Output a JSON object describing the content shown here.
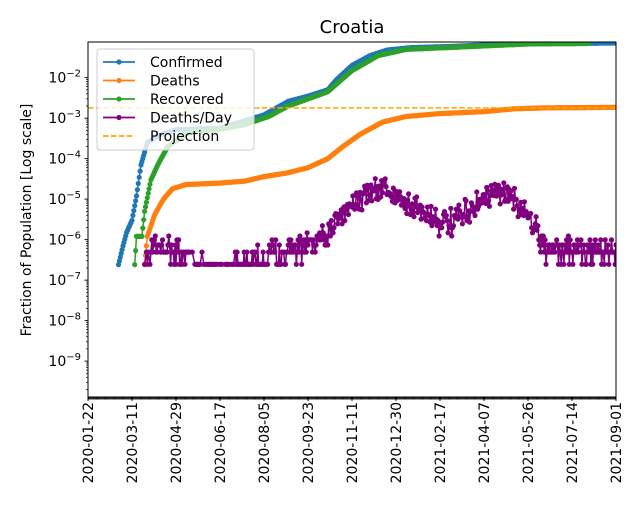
{
  "chart_data": {
    "type": "line",
    "title": "Croatia",
    "xlabel": "",
    "ylabel": "Fraction of Population [Log scale]",
    "yscale": "log",
    "ylim": [
      1.3e-10,
      0.076
    ],
    "xlim": [
      "2020-01-22",
      "2021-09-01"
    ],
    "xticks": [
      "2020-01-22",
      "2020-03-11",
      "2020-04-29",
      "2020-06-17",
      "2020-08-05",
      "2020-09-23",
      "2020-11-11",
      "2020-12-30",
      "2021-02-17",
      "2021-04-07",
      "2021-05-26",
      "2021-07-14",
      "2021-09-01"
    ],
    "yticks": [
      {
        "exp": -2,
        "label": "10",
        "sup": "−2"
      },
      {
        "exp": -3,
        "label": "10",
        "sup": "−3"
      },
      {
        "exp": -4,
        "label": "10",
        "sup": "−4"
      },
      {
        "exp": -5,
        "label": "10",
        "sup": "−5"
      },
      {
        "exp": -6,
        "label": "10",
        "sup": "−6"
      },
      {
        "exp": -7,
        "label": "10",
        "sup": "−7"
      },
      {
        "exp": -8,
        "label": "10",
        "sup": "−8"
      },
      {
        "exp": -9,
        "label": "10",
        "sup": "−9"
      }
    ],
    "legend_position": "top-left",
    "series": [
      {
        "name": "Confirmed",
        "color": "#1f77b4",
        "points": [
          [
            "2020-02-25",
            2.4e-07
          ],
          [
            "2020-03-01",
            7e-07
          ],
          [
            "2020-03-05",
            1.5e-06
          ],
          [
            "2020-03-11",
            3e-06
          ],
          [
            "2020-03-16",
            1.2e-05
          ],
          [
            "2020-03-21",
            7e-05
          ],
          [
            "2020-03-28",
            0.00025
          ],
          [
            "2020-04-10",
            0.00038
          ],
          [
            "2020-04-29",
            0.00052
          ],
          [
            "2020-06-17",
            0.00056
          ],
          [
            "2020-07-10",
            0.0008
          ],
          [
            "2020-08-05",
            0.0012
          ],
          [
            "2020-09-01",
            0.0026
          ],
          [
            "2020-09-23",
            0.0035
          ],
          [
            "2020-10-15",
            0.005
          ],
          [
            "2020-10-25",
            0.009
          ],
          [
            "2020-11-11",
            0.02
          ],
          [
            "2020-12-01",
            0.035
          ],
          [
            "2020-12-20",
            0.048
          ],
          [
            "2021-01-15",
            0.055
          ],
          [
            "2021-03-01",
            0.059
          ],
          [
            "2021-04-07",
            0.064
          ],
          [
            "2021-05-26",
            0.07
          ],
          [
            "2021-09-01",
            0.072
          ]
        ]
      },
      {
        "name": "Deaths",
        "color": "#ff7f0e",
        "points": [
          [
            "2020-03-25",
            2.4e-07
          ],
          [
            "2020-03-28",
            1.2e-06
          ],
          [
            "2020-04-05",
            4e-06
          ],
          [
            "2020-04-15",
            1e-05
          ],
          [
            "2020-04-25",
            1.8e-05
          ],
          [
            "2020-05-10",
            2.3e-05
          ],
          [
            "2020-06-17",
            2.5e-05
          ],
          [
            "2020-07-15",
            2.8e-05
          ],
          [
            "2020-08-05",
            3.6e-05
          ],
          [
            "2020-09-01",
            4.5e-05
          ],
          [
            "2020-09-23",
            6e-05
          ],
          [
            "2020-10-15",
            0.0001
          ],
          [
            "2020-11-01",
            0.0002
          ],
          [
            "2020-11-20",
            0.0004
          ],
          [
            "2020-12-15",
            0.0008
          ],
          [
            "2021-01-10",
            0.0011
          ],
          [
            "2021-02-17",
            0.0013
          ],
          [
            "2021-04-07",
            0.00145
          ],
          [
            "2021-05-10",
            0.0017
          ],
          [
            "2021-06-15",
            0.0018
          ],
          [
            "2021-09-01",
            0.00185
          ]
        ]
      },
      {
        "name": "Recovered",
        "color": "#2ca02c",
        "points": [
          [
            "2020-03-14",
            2.4e-07
          ],
          [
            "2020-03-16",
            1.2e-06
          ],
          [
            "2020-03-22",
            1.2e-06
          ],
          [
            "2020-03-25",
            5e-06
          ],
          [
            "2020-04-01",
            3e-05
          ],
          [
            "2020-04-10",
            8e-05
          ],
          [
            "2020-04-20",
            0.0002
          ],
          [
            "2020-05-10",
            0.00042
          ],
          [
            "2020-06-17",
            0.00053
          ],
          [
            "2020-07-15",
            0.0007
          ],
          [
            "2020-08-10",
            0.0011
          ],
          [
            "2020-09-01",
            0.002
          ],
          [
            "2020-09-23",
            0.003
          ],
          [
            "2020-10-15",
            0.0045
          ],
          [
            "2020-11-11",
            0.015
          ],
          [
            "2020-12-10",
            0.035
          ],
          [
            "2021-01-10",
            0.05
          ],
          [
            "2021-03-01",
            0.056
          ],
          [
            "2021-04-15",
            0.062
          ],
          [
            "2021-05-26",
            0.068
          ],
          [
            "2021-08-01",
            0.07
          ]
        ]
      },
      {
        "name": "Deaths/Day",
        "color": "#800080",
        "min_value": 2.46e-07,
        "trend_points": [
          [
            "2020-03-25",
            2.5e-07
          ],
          [
            "2020-04-10",
            8e-07
          ],
          [
            "2020-05-01",
            5e-07
          ],
          [
            "2020-05-20",
            2e-07
          ],
          [
            "2020-06-20",
            1.5e-07
          ],
          [
            "2020-07-20",
            3e-07
          ],
          [
            "2020-08-20",
            5e-07
          ],
          [
            "2020-09-23",
            7e-07
          ],
          [
            "2020-10-15",
            1e-06
          ],
          [
            "2020-10-25",
            4e-06
          ],
          [
            "2020-11-11",
            8e-06
          ],
          [
            "2020-12-01",
            1.4e-05
          ],
          [
            "2020-12-15",
            1.8e-05
          ],
          [
            "2021-01-01",
            1.2e-05
          ],
          [
            "2021-01-20",
            6e-06
          ],
          [
            "2021-02-10",
            3.5e-06
          ],
          [
            "2021-02-25",
            2.2e-06
          ],
          [
            "2021-03-15",
            4e-06
          ],
          [
            "2021-04-07",
            1e-05
          ],
          [
            "2021-04-25",
            1.4e-05
          ],
          [
            "2021-05-15",
            8e-06
          ],
          [
            "2021-06-01",
            2.5e-06
          ],
          [
            "2021-06-15",
            6e-07
          ],
          [
            "2021-09-01",
            5e-07
          ]
        ]
      }
    ],
    "projection": {
      "name": "Projection",
      "color": "#ffa500",
      "value": 0.0018,
      "style": "dashed"
    }
  }
}
